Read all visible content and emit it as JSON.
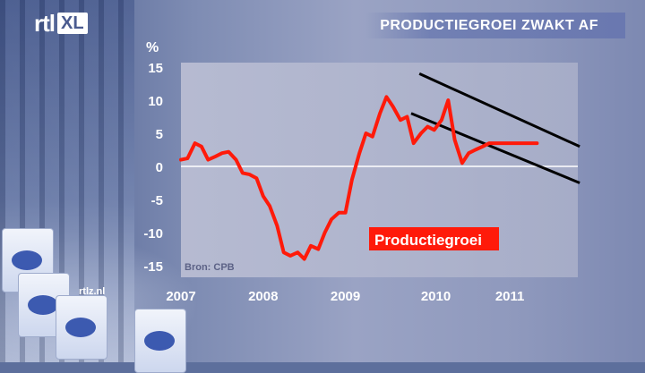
{
  "brand": {
    "logo_main": "rtl",
    "logo_badge": "XL",
    "watermark": "rtlz.nl"
  },
  "title": "PRODUCTIEGROEI ZWAKT AF",
  "chart_data": {
    "type": "line",
    "title": "PRODUCTIEGROEI ZWAKT AF",
    "yunit": "%",
    "ylim": [
      -15,
      15
    ],
    "yticks": [
      15,
      10,
      5,
      0,
      -5,
      -10,
      -15
    ],
    "xlim": [
      2007.0,
      2011.5
    ],
    "xticks": [
      {
        "value": 2007.0,
        "label": "2007"
      },
      {
        "value": 2008.0,
        "label": "2008"
      },
      {
        "value": 2009.0,
        "label": "2009"
      },
      {
        "value": 2010.1,
        "label": "2010"
      },
      {
        "value": 2011.0,
        "label": "2011"
      }
    ],
    "grid": false,
    "source": "Bron: CPB",
    "series": [
      {
        "name": "Productiegroei",
        "color": "#ff1a0a",
        "x": [
          2007.0,
          2007.08,
          2007.17,
          2007.25,
          2007.33,
          2007.42,
          2007.5,
          2007.58,
          2007.67,
          2007.75,
          2007.83,
          2007.92,
          2008.0,
          2008.08,
          2008.17,
          2008.25,
          2008.33,
          2008.42,
          2008.5,
          2008.58,
          2008.67,
          2008.75,
          2008.83,
          2008.92,
          2009.0,
          2009.08,
          2009.17,
          2009.25,
          2009.33,
          2009.42,
          2009.5,
          2009.58,
          2009.67,
          2009.75,
          2009.83,
          2009.92,
          2010.0,
          2010.08,
          2010.17,
          2010.25,
          2010.33,
          2010.42,
          2010.5,
          2010.58,
          2010.67,
          2010.75,
          2010.83,
          2010.92,
          2011.0,
          2011.08,
          2011.17,
          2011.25,
          2011.33
        ],
        "values": [
          1.0,
          1.2,
          3.5,
          3.0,
          1.0,
          1.5,
          2.0,
          2.2,
          1.0,
          -1.0,
          -1.2,
          -1.8,
          -4.5,
          -6.0,
          -9.0,
          -13.0,
          -13.5,
          -13.0,
          -14.0,
          -12.0,
          -12.5,
          -10.0,
          -8.0,
          -7.0,
          -7.0,
          -2.0,
          2.0,
          5.0,
          4.5,
          8.0,
          10.5,
          9.0,
          7.0,
          7.5,
          3.5,
          5.0,
          6.0,
          5.5,
          7.0,
          10.0,
          4.0,
          0.5,
          2.0,
          2.5,
          3.0,
          3.5,
          3.5,
          3.5,
          3.5,
          3.5,
          3.5,
          3.5,
          3.5
        ]
      }
    ],
    "annotations": [
      {
        "type": "trend-line",
        "x": [
          2009.9,
          2011.85
        ],
        "y": [
          14.0,
          3.0
        ]
      },
      {
        "type": "trend-line",
        "x": [
          2009.8,
          2011.85
        ],
        "y": [
          8.0,
          -2.5
        ]
      }
    ]
  }
}
